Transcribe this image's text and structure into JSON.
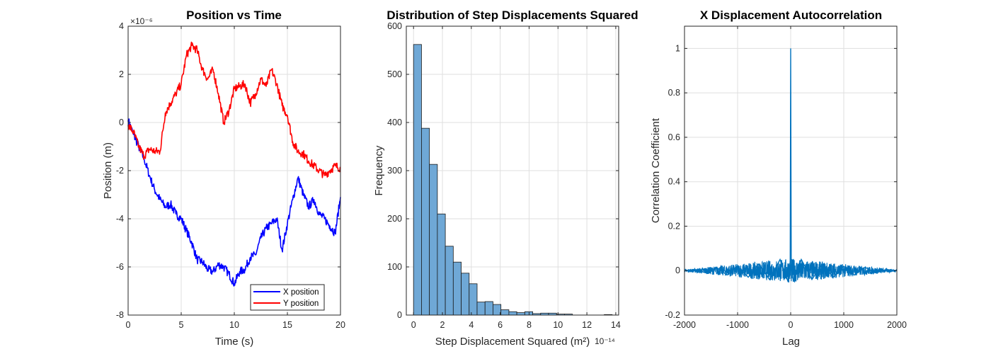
{
  "figure": {
    "background": "#ffffff",
    "grid_color": "#dfdfdf",
    "axis_color": "#262626"
  },
  "chart_data": [
    {
      "type": "line",
      "title": "Position vs Time",
      "xlabel": "Time (s)",
      "ylabel": "Position (m)",
      "y_exponent_label": "×10⁻⁶",
      "xlim": [
        0,
        20
      ],
      "ylim": [
        -8,
        4
      ],
      "xticks": [
        0,
        5,
        10,
        15,
        20
      ],
      "yticks": [
        -8,
        -6,
        -4,
        -2,
        0,
        2,
        4
      ],
      "xtick_labels": [
        "0",
        "5",
        "10",
        "15",
        "20"
      ],
      "ytick_labels": [
        "-8",
        "-6",
        "-4",
        "-2",
        "0",
        "2",
        "4"
      ],
      "grid": true,
      "legend": "bottom-right",
      "x": [
        0,
        0.5,
        1,
        1.5,
        2,
        2.5,
        3,
        3.5,
        4,
        4.5,
        5,
        5.5,
        6,
        6.5,
        7,
        7.5,
        8,
        8.5,
        9,
        9.5,
        10,
        10.5,
        11,
        11.5,
        12,
        12.5,
        13,
        13.5,
        14,
        14.5,
        15,
        15.5,
        16,
        16.5,
        17,
        17.5,
        18,
        18.5,
        19,
        19.5,
        20
      ],
      "series": [
        {
          "name": "X position",
          "color": "#0000ff",
          "values": [
            0.1,
            -0.5,
            -1.0,
            -1.5,
            -2.2,
            -2.8,
            -3.2,
            -3.5,
            -3.4,
            -3.8,
            -4.0,
            -4.5,
            -5.0,
            -5.7,
            -5.8,
            -6.1,
            -6.2,
            -5.9,
            -6.0,
            -6.3,
            -6.7,
            -6.2,
            -6.1,
            -5.6,
            -5.5,
            -4.8,
            -4.4,
            -4.2,
            -4.0,
            -5.3,
            -4.2,
            -3.2,
            -2.3,
            -3.0,
            -3.5,
            -3.2,
            -3.8,
            -4.0,
            -4.3,
            -4.6,
            -3.1
          ]
        },
        {
          "name": "Y position",
          "color": "#ff0000",
          "values": [
            -0.1,
            -0.4,
            -1.0,
            -1.4,
            -1.1,
            -1.2,
            -1.2,
            0.4,
            0.8,
            1.2,
            1.6,
            2.8,
            3.2,
            3.0,
            2.2,
            1.8,
            2.2,
            1.2,
            0.0,
            0.5,
            1.4,
            1.5,
            1.6,
            0.8,
            1.2,
            1.8,
            1.5,
            2.2,
            1.6,
            0.7,
            0.3,
            -0.8,
            -1.2,
            -1.3,
            -1.6,
            -1.8,
            -2.0,
            -2.2,
            -2.0,
            -1.8,
            -1.9
          ]
        }
      ]
    },
    {
      "type": "bar",
      "title": "Distribution of Step Displacements Squared",
      "xlabel": "Step Displacement Squared (m²)",
      "ylabel": "Frequency",
      "x_exponent_label": "10⁻¹⁴",
      "xlim": [
        -0.5,
        14.2
      ],
      "ylim": [
        0,
        600
      ],
      "xticks": [
        0,
        2,
        4,
        6,
        8,
        10,
        12,
        14
      ],
      "yticks": [
        0,
        100,
        200,
        300,
        400,
        500,
        600
      ],
      "xtick_labels": [
        "0",
        "2",
        "4",
        "6",
        "8",
        "10",
        "12",
        "14"
      ],
      "ytick_labels": [
        "0",
        "100",
        "200",
        "300",
        "400",
        "500",
        "600"
      ],
      "grid": true,
      "bar_color": "#6fa8d6",
      "bin_edges": [
        0,
        0.55,
        1.1,
        1.65,
        2.2,
        2.75,
        3.3,
        3.85,
        4.4,
        4.95,
        5.5,
        6.05,
        6.6,
        7.15,
        7.7,
        8.25,
        8.8,
        9.35,
        9.9,
        10.45,
        11.0,
        11.55,
        12.1,
        12.65,
        13.2,
        13.75
      ],
      "values": [
        562,
        388,
        313,
        210,
        143,
        110,
        87,
        65,
        27,
        28,
        22,
        11,
        7,
        5,
        7,
        3,
        4,
        4,
        2,
        2,
        0,
        0,
        0,
        0,
        1
      ]
    },
    {
      "type": "line",
      "title": "X Displacement Autocorrelation",
      "xlabel": "Lag",
      "ylabel": "Correlation Coefficient",
      "xlim": [
        -2000,
        2000
      ],
      "ylim": [
        -0.2,
        1.1
      ],
      "xticks": [
        -2000,
        -1000,
        0,
        1000,
        2000
      ],
      "yticks": [
        -0.2,
        0,
        0.2,
        0.4,
        0.6,
        0.8,
        1
      ],
      "xtick_labels": [
        "-2000",
        "-1000",
        "0",
        "1000",
        "2000"
      ],
      "ytick_labels": [
        "-0.2",
        "0",
        "0.2",
        "0.4",
        "0.6",
        "0.8",
        "1"
      ],
      "grid": true,
      "series": [
        {
          "name": "",
          "color": "#0072bd",
          "x": [
            -2000,
            -1800,
            -1600,
            -1400,
            -1200,
            -1000,
            -800,
            -600,
            -400,
            -200,
            -50,
            -10,
            0,
            10,
            50,
            200,
            400,
            600,
            800,
            1000,
            1200,
            1400,
            1600,
            1800,
            2000
          ],
          "values": [
            0.0,
            0.005,
            -0.01,
            0.015,
            -0.02,
            0.02,
            -0.03,
            0.03,
            -0.04,
            0.05,
            -0.05,
            0.03,
            1.0,
            0.03,
            -0.05,
            0.05,
            -0.04,
            0.03,
            -0.03,
            0.02,
            -0.02,
            0.015,
            -0.01,
            0.005,
            0.0
          ]
        }
      ]
    }
  ]
}
